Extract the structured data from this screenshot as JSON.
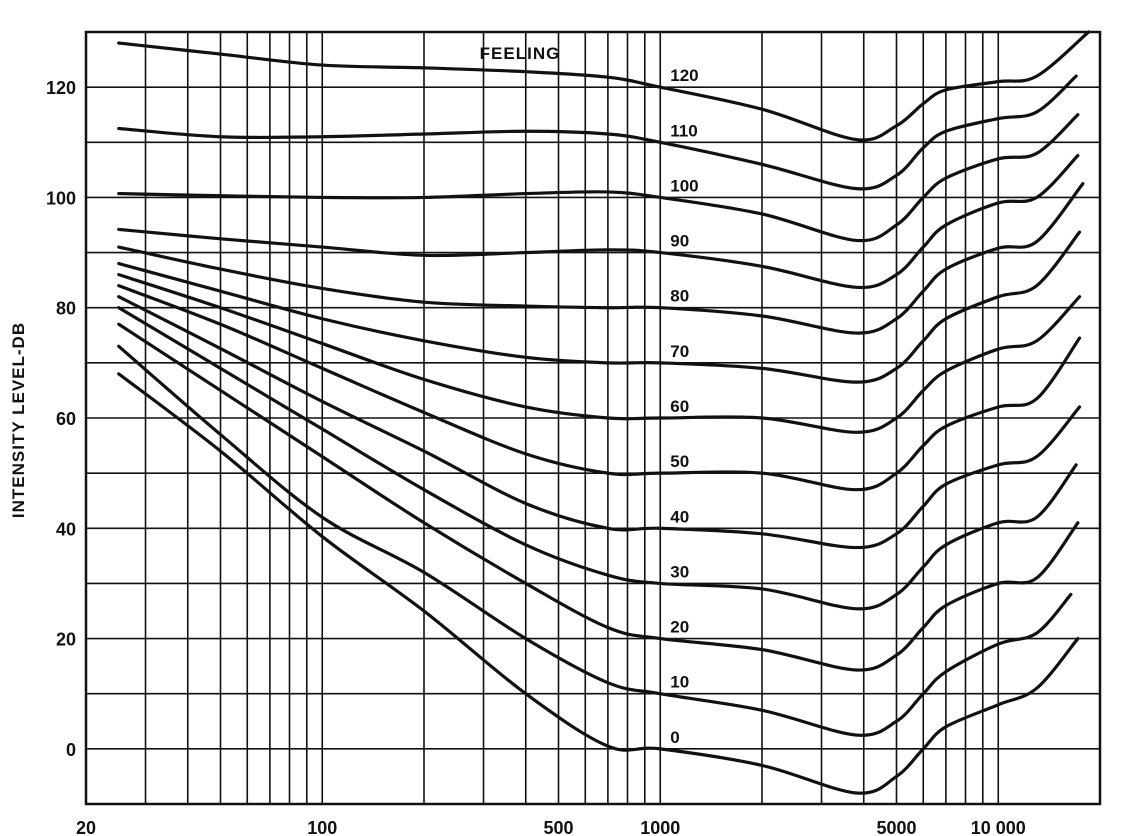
{
  "chart_data": {
    "type": "line",
    "title": "",
    "xlabel": "",
    "ylabel": "INTENSITY LEVEL-DB",
    "x_scale": "log",
    "xlim": [
      20,
      20000
    ],
    "ylim": [
      -10,
      130
    ],
    "grid": true,
    "x_tick_labels": [
      {
        "value": 20,
        "label": "20"
      },
      {
        "value": 100,
        "label": "100"
      },
      {
        "value": 500,
        "label": "500"
      },
      {
        "value": 1000,
        "label": "1000"
      },
      {
        "value": 5000,
        "label": "5000"
      },
      {
        "value": 10000,
        "label": "10 000"
      }
    ],
    "y_tick_labels": [
      {
        "value": 0,
        "label": "0"
      },
      {
        "value": 20,
        "label": "20"
      },
      {
        "value": 40,
        "label": "40"
      },
      {
        "value": 60,
        "label": "60"
      },
      {
        "value": 80,
        "label": "80"
      },
      {
        "value": 100,
        "label": "100"
      },
      {
        "value": 120,
        "label": "120"
      }
    ],
    "annotations": [
      {
        "text": "FEELING",
        "x": 1000,
        "y": 126
      }
    ],
    "line_color": "#111111",
    "series": [
      {
        "name": "0",
        "x": [
          25,
          50,
          100,
          200,
          400,
          700,
          1000,
          2000,
          3800,
          5000,
          6000,
          7000,
          10000,
          13000,
          17200
        ],
        "y": [
          68,
          54,
          38.5,
          25,
          10,
          0.5,
          0,
          -3,
          -8,
          -5,
          0,
          4,
          8,
          11,
          20
        ]
      },
      {
        "name": "10",
        "x": [
          25,
          50,
          100,
          200,
          400,
          700,
          1000,
          2000,
          3800,
          5000,
          6000,
          7000,
          10000,
          13000,
          16400
        ],
        "y": [
          73,
          57,
          42,
          32,
          20,
          12,
          10,
          7,
          2.5,
          5,
          10,
          14,
          19,
          21,
          28
        ]
      },
      {
        "name": "20",
        "x": [
          25,
          50,
          100,
          200,
          400,
          700,
          1000,
          2000,
          3800,
          5000,
          6000,
          7000,
          10000,
          13000,
          17200
        ],
        "y": [
          77,
          65,
          53,
          41,
          30,
          22,
          20,
          18,
          14.3,
          17,
          22,
          26,
          30,
          31,
          41
        ]
      },
      {
        "name": "30",
        "x": [
          25,
          50,
          100,
          200,
          400,
          700,
          1000,
          2000,
          3800,
          5000,
          6000,
          7000,
          10000,
          13000,
          17000
        ],
        "y": [
          80,
          69,
          58,
          47,
          37,
          31.5,
          30,
          29,
          25.4,
          28,
          33,
          37,
          41,
          42,
          51.5
        ]
      },
      {
        "name": "40",
        "x": [
          25,
          50,
          100,
          200,
          400,
          700,
          1000,
          2000,
          3800,
          5000,
          6000,
          7000,
          10000,
          13000,
          17400
        ],
        "y": [
          82,
          72.6,
          63,
          54,
          44.5,
          40,
          40,
          39,
          36.5,
          39,
          44,
          48,
          51.5,
          53,
          62
        ]
      },
      {
        "name": "50",
        "x": [
          25,
          50,
          100,
          200,
          400,
          700,
          1000,
          2000,
          3800,
          5000,
          6000,
          7000,
          10000,
          13000,
          17400
        ],
        "y": [
          84,
          77,
          69,
          61,
          53.5,
          50,
          50,
          50,
          47,
          50,
          55,
          58.5,
          62,
          63.5,
          74.5
        ]
      },
      {
        "name": "60",
        "x": [
          25,
          50,
          100,
          200,
          400,
          700,
          1000,
          2000,
          3800,
          5000,
          6000,
          7000,
          10000,
          13000,
          17400
        ],
        "y": [
          86,
          80,
          73.5,
          67,
          62,
          60,
          60,
          60,
          57.4,
          60,
          65,
          68.5,
          72.5,
          74,
          82
        ]
      },
      {
        "name": "70",
        "x": [
          25,
          50,
          100,
          200,
          400,
          700,
          1000,
          2000,
          3800,
          5000,
          6000,
          7000,
          10000,
          13000,
          17400
        ],
        "y": [
          88,
          83,
          78,
          74,
          71,
          70,
          70,
          69,
          66.5,
          69,
          74,
          78,
          82,
          84,
          93.7
        ]
      },
      {
        "name": "80",
        "x": [
          25,
          50,
          100,
          200,
          400,
          700,
          1000,
          2000,
          3800,
          5000,
          6000,
          7000,
          10000,
          13000,
          17800
        ],
        "y": [
          91,
          87,
          83.5,
          81,
          80.3,
          80,
          80,
          78.5,
          75.4,
          78,
          83,
          87,
          90.8,
          92,
          102.5
        ]
      },
      {
        "name": "90",
        "x": [
          25,
          50,
          100,
          200,
          400,
          700,
          1000,
          2000,
          3800,
          5000,
          6000,
          7000,
          10000,
          13000,
          17200
        ],
        "y": [
          94.2,
          92.5,
          91,
          89.5,
          90,
          90.5,
          90,
          87.5,
          83.7,
          86,
          91,
          95,
          99,
          100,
          107.6
        ]
      },
      {
        "name": "100",
        "x": [
          25,
          50,
          100,
          200,
          400,
          700,
          1000,
          2000,
          3800,
          5000,
          6000,
          7000,
          10000,
          13000,
          17200
        ],
        "y": [
          100.7,
          100.3,
          100,
          100,
          100.7,
          101,
          100,
          97,
          92.2,
          95,
          100,
          103.5,
          107,
          108,
          115
        ]
      },
      {
        "name": "110",
        "x": [
          25,
          50,
          100,
          200,
          400,
          700,
          1000,
          2000,
          3800,
          5000,
          6000,
          7000,
          10000,
          13000,
          17000
        ],
        "y": [
          112.5,
          111,
          111,
          111.5,
          112,
          111.5,
          110,
          106,
          101.6,
          104,
          109,
          112,
          114.3,
          115.5,
          122
        ]
      },
      {
        "name": "120",
        "x": [
          25,
          50,
          100,
          200,
          400,
          700,
          1000,
          2000,
          3800,
          5000,
          6000,
          7000,
          10000,
          13000,
          18500
        ],
        "y": [
          128,
          126,
          124,
          123.5,
          122.8,
          121.8,
          120,
          116,
          110.5,
          113,
          117,
          119.5,
          121,
          122,
          130
        ]
      }
    ]
  }
}
